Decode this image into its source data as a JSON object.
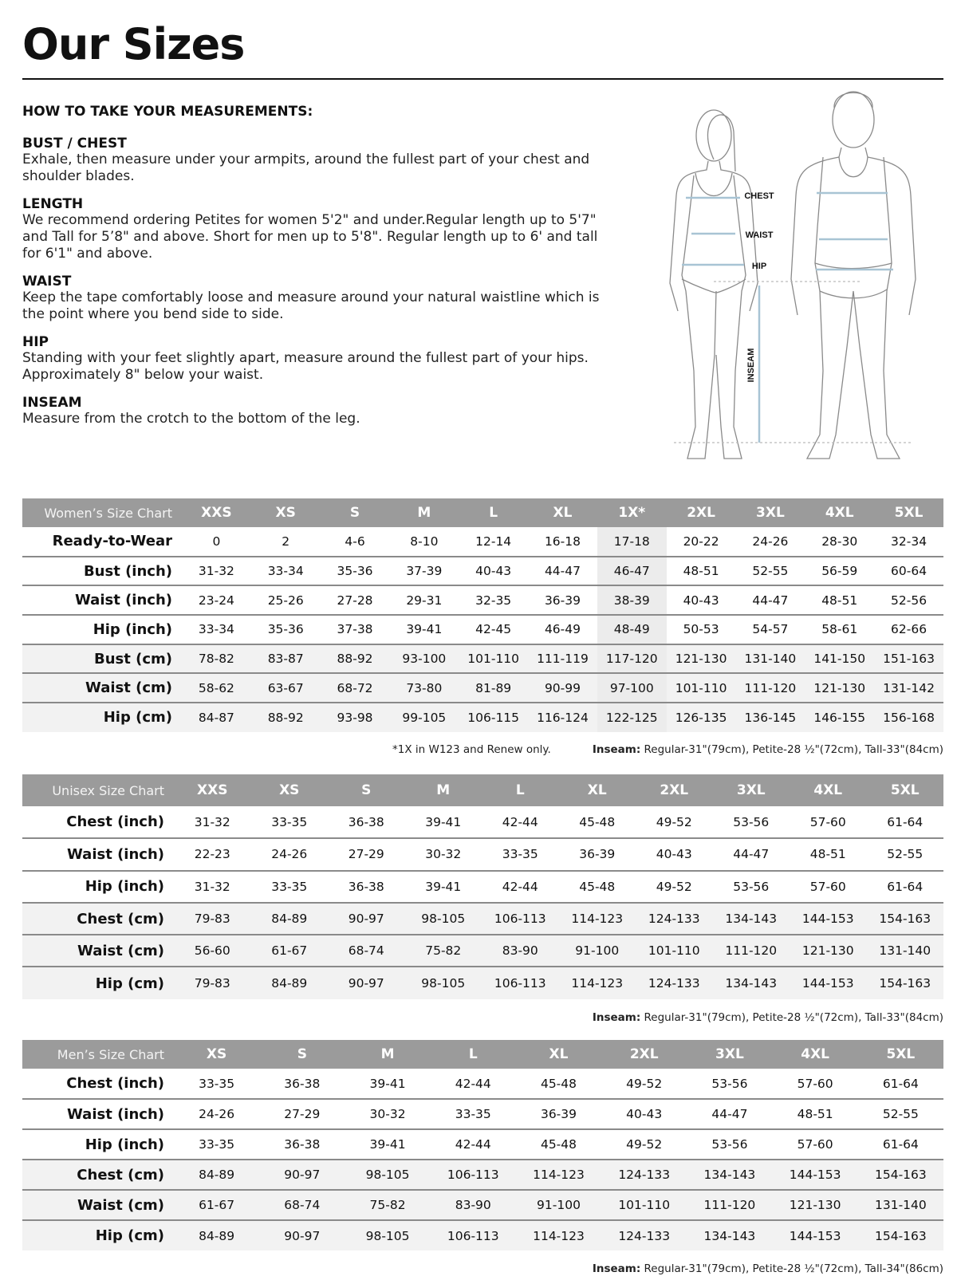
{
  "title": "Our Sizes",
  "guide": {
    "heading": "HOW TO TAKE YOUR MEASUREMENTS:",
    "sections": [
      {
        "title": "BUST / CHEST",
        "text": "Exhale, then measure under your armpits, around the fullest part of your chest and shoulder blades."
      },
      {
        "title": "LENGTH",
        "text": "We recommend ordering Petites for women 5'2\" and under.Regular length up to 5'7\" and Tall for 5’8\" and above. Short for men up to 5'8\". Regular length up to 6' and tall for 6'1\" and above."
      },
      {
        "title": "WAIST",
        "text": "Keep the tape comfortably loose and measure around your natural waistline which is the point where you bend side to side."
      },
      {
        "title": "HIP",
        "text": "Standing with your feet slightly apart, measure around the fullest part of your hips. Approximately 8\" below your waist."
      },
      {
        "title": "INSEAM",
        "text": "Measure from the crotch to the bottom of the leg."
      }
    ]
  },
  "figure": {
    "labels": {
      "chest": "CHEST",
      "waist": "WAIST",
      "hip": "HIP",
      "inseam": "INSEAM"
    },
    "measure_line_color": "#a8c4d4"
  },
  "tables": [
    {
      "name": "Women’s Size Chart",
      "highlight_column": "1X*",
      "columns": [
        "XXS",
        "XS",
        "S",
        "M",
        "L",
        "XL",
        "1X*",
        "2XL",
        "3XL",
        "4XL",
        "5XL"
      ],
      "rows": [
        {
          "label": "Ready-to-Wear",
          "values": [
            "0",
            "2",
            "4-6",
            "8-10",
            "12-14",
            "16-18",
            "17-18",
            "20-22",
            "24-26",
            "28-30",
            "32-34"
          ]
        },
        {
          "label": "Bust (inch)",
          "values": [
            "31-32",
            "33-34",
            "35-36",
            "37-39",
            "40-43",
            "44-47",
            "46-47",
            "48-51",
            "52-55",
            "56-59",
            "60-64"
          ]
        },
        {
          "label": "Waist (inch)",
          "values": [
            "23-24",
            "25-26",
            "27-28",
            "29-31",
            "32-35",
            "36-39",
            "38-39",
            "40-43",
            "44-47",
            "48-51",
            "52-56"
          ]
        },
        {
          "label": "Hip (inch)",
          "values": [
            "33-34",
            "35-36",
            "37-38",
            "39-41",
            "42-45",
            "46-49",
            "48-49",
            "50-53",
            "54-57",
            "58-61",
            "62-66"
          ]
        },
        {
          "label": "Bust (cm)",
          "values": [
            "78-82",
            "83-87",
            "88-92",
            "93-100",
            "101-110",
            "111-119",
            "117-120",
            "121-130",
            "131-140",
            "141-150",
            "151-163"
          ]
        },
        {
          "label": "Waist (cm)",
          "values": [
            "58-62",
            "63-67",
            "68-72",
            "73-80",
            "81-89",
            "90-99",
            "97-100",
            "101-110",
            "111-120",
            "121-130",
            "131-142"
          ]
        },
        {
          "label": "Hip (cm)",
          "values": [
            "84-87",
            "88-92",
            "93-98",
            "99-105",
            "106-115",
            "116-124",
            "122-125",
            "126-135",
            "136-145",
            "146-155",
            "156-168"
          ]
        }
      ],
      "footnote": "*1X in W123 and Renew only.",
      "inseam_label": "Inseam:",
      "inseam": "Regular-31\"(79cm), Petite-28 ½\"(72cm), Tall-33\"(84cm)"
    },
    {
      "name": "Unisex Size Chart",
      "columns": [
        "XXS",
        "XS",
        "S",
        "M",
        "L",
        "XL",
        "2XL",
        "3XL",
        "4XL",
        "5XL"
      ],
      "rows": [
        {
          "label": "Chest (inch)",
          "values": [
            "31-32",
            "33-35",
            "36-38",
            "39-41",
            "42-44",
            "45-48",
            "49-52",
            "53-56",
            "57-60",
            "61-64"
          ]
        },
        {
          "label": "Waist (inch)",
          "values": [
            "22-23",
            "24-26",
            "27-29",
            "30-32",
            "33-35",
            "36-39",
            "40-43",
            "44-47",
            "48-51",
            "52-55"
          ]
        },
        {
          "label": "Hip (inch)",
          "values": [
            "31-32",
            "33-35",
            "36-38",
            "39-41",
            "42-44",
            "45-48",
            "49-52",
            "53-56",
            "57-60",
            "61-64"
          ]
        },
        {
          "label": "Chest (cm)",
          "values": [
            "79-83",
            "84-89",
            "90-97",
            "98-105",
            "106-113",
            "114-123",
            "124-133",
            "134-143",
            "144-153",
            "154-163"
          ]
        },
        {
          "label": "Waist (cm)",
          "values": [
            "56-60",
            "61-67",
            "68-74",
            "75-82",
            "83-90",
            "91-100",
            "101-110",
            "111-120",
            "121-130",
            "131-140"
          ]
        },
        {
          "label": "Hip (cm)",
          "values": [
            "79-83",
            "84-89",
            "90-97",
            "98-105",
            "106-113",
            "114-123",
            "124-133",
            "134-143",
            "144-153",
            "154-163"
          ]
        }
      ],
      "inseam_label": "Inseam:",
      "inseam": "Regular-31\"(79cm), Petite-28 ½\"(72cm), Tall-33\"(84cm)"
    },
    {
      "name": "Men’s Size Chart",
      "columns": [
        "XS",
        "S",
        "M",
        "L",
        "XL",
        "2XL",
        "3XL",
        "4XL",
        "5XL"
      ],
      "rows": [
        {
          "label": "Chest (inch)",
          "values": [
            "33-35",
            "36-38",
            "39-41",
            "42-44",
            "45-48",
            "49-52",
            "53-56",
            "57-60",
            "61-64"
          ]
        },
        {
          "label": "Waist (inch)",
          "values": [
            "24-26",
            "27-29",
            "30-32",
            "33-35",
            "36-39",
            "40-43",
            "44-47",
            "48-51",
            "52-55"
          ]
        },
        {
          "label": "Hip (inch)",
          "values": [
            "33-35",
            "36-38",
            "39-41",
            "42-44",
            "45-48",
            "49-52",
            "53-56",
            "57-60",
            "61-64"
          ]
        },
        {
          "label": "Chest (cm)",
          "values": [
            "84-89",
            "90-97",
            "98-105",
            "106-113",
            "114-123",
            "124-133",
            "134-143",
            "144-153",
            "154-163"
          ]
        },
        {
          "label": "Waist (cm)",
          "values": [
            "61-67",
            "68-74",
            "75-82",
            "83-90",
            "91-100",
            "101-110",
            "111-120",
            "121-130",
            "131-140"
          ]
        },
        {
          "label": "Hip (cm)",
          "values": [
            "84-89",
            "90-97",
            "98-105",
            "106-113",
            "114-123",
            "124-133",
            "134-143",
            "144-153",
            "154-163"
          ]
        }
      ],
      "inseam_label": "Inseam:",
      "inseam": "Regular-31\"(79cm), Petite-28 ½\"(72cm), Tall-34\"(86cm)"
    }
  ]
}
